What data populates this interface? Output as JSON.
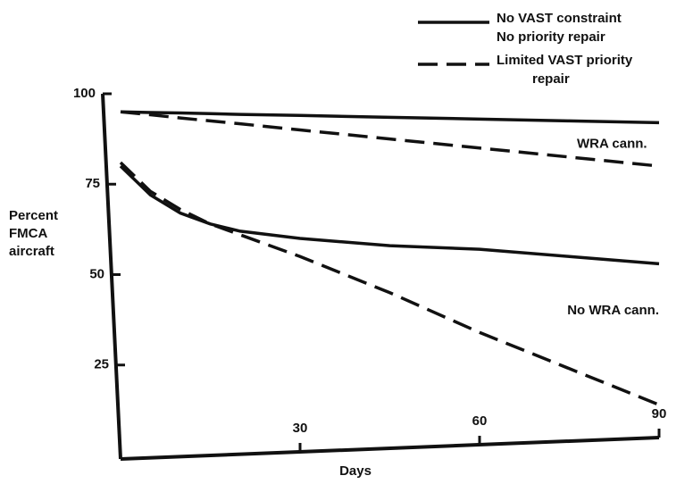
{
  "chart_data": {
    "type": "line",
    "x": [
      0,
      5,
      10,
      15,
      20,
      30,
      45,
      60,
      75,
      90
    ],
    "xlim": [
      0,
      90
    ],
    "ylim": [
      0,
      100
    ],
    "xticks": [
      30,
      60,
      90
    ],
    "yticks": [
      25,
      50,
      75,
      100
    ],
    "x_label": "Days",
    "y_label": [
      "Percent",
      "FMCA",
      "aircraft"
    ],
    "color": "#111111",
    "legend": [
      {
        "lines": [
          "No VAST constraint",
          "No priority repair"
        ],
        "dashed": false
      },
      {
        "lines": [
          "Limited VAST priority",
          "repair"
        ],
        "dashed": true
      }
    ],
    "series": [
      {
        "legend": 0,
        "values": [
          95,
          94.8,
          94.7,
          94.5,
          94.3,
          94,
          93.5,
          93,
          92.5,
          92
        ]
      },
      {
        "legend": 1,
        "values": [
          95,
          94.2,
          93.3,
          92.5,
          91.7,
          90,
          87.5,
          85,
          82.5,
          80
        ]
      },
      {
        "legend": 0,
        "values": [
          80,
          72,
          67,
          64,
          62,
          60,
          58,
          57,
          55,
          53
        ]
      },
      {
        "legend": 1,
        "values": [
          81,
          73,
          68,
          64,
          61,
          55,
          45,
          34,
          24,
          14
        ]
      }
    ],
    "annotations": [
      {
        "text": "WRA cann.",
        "x": 88,
        "y": 86
      },
      {
        "text": "No WRA cann.",
        "x": 90,
        "y": 40
      }
    ]
  }
}
